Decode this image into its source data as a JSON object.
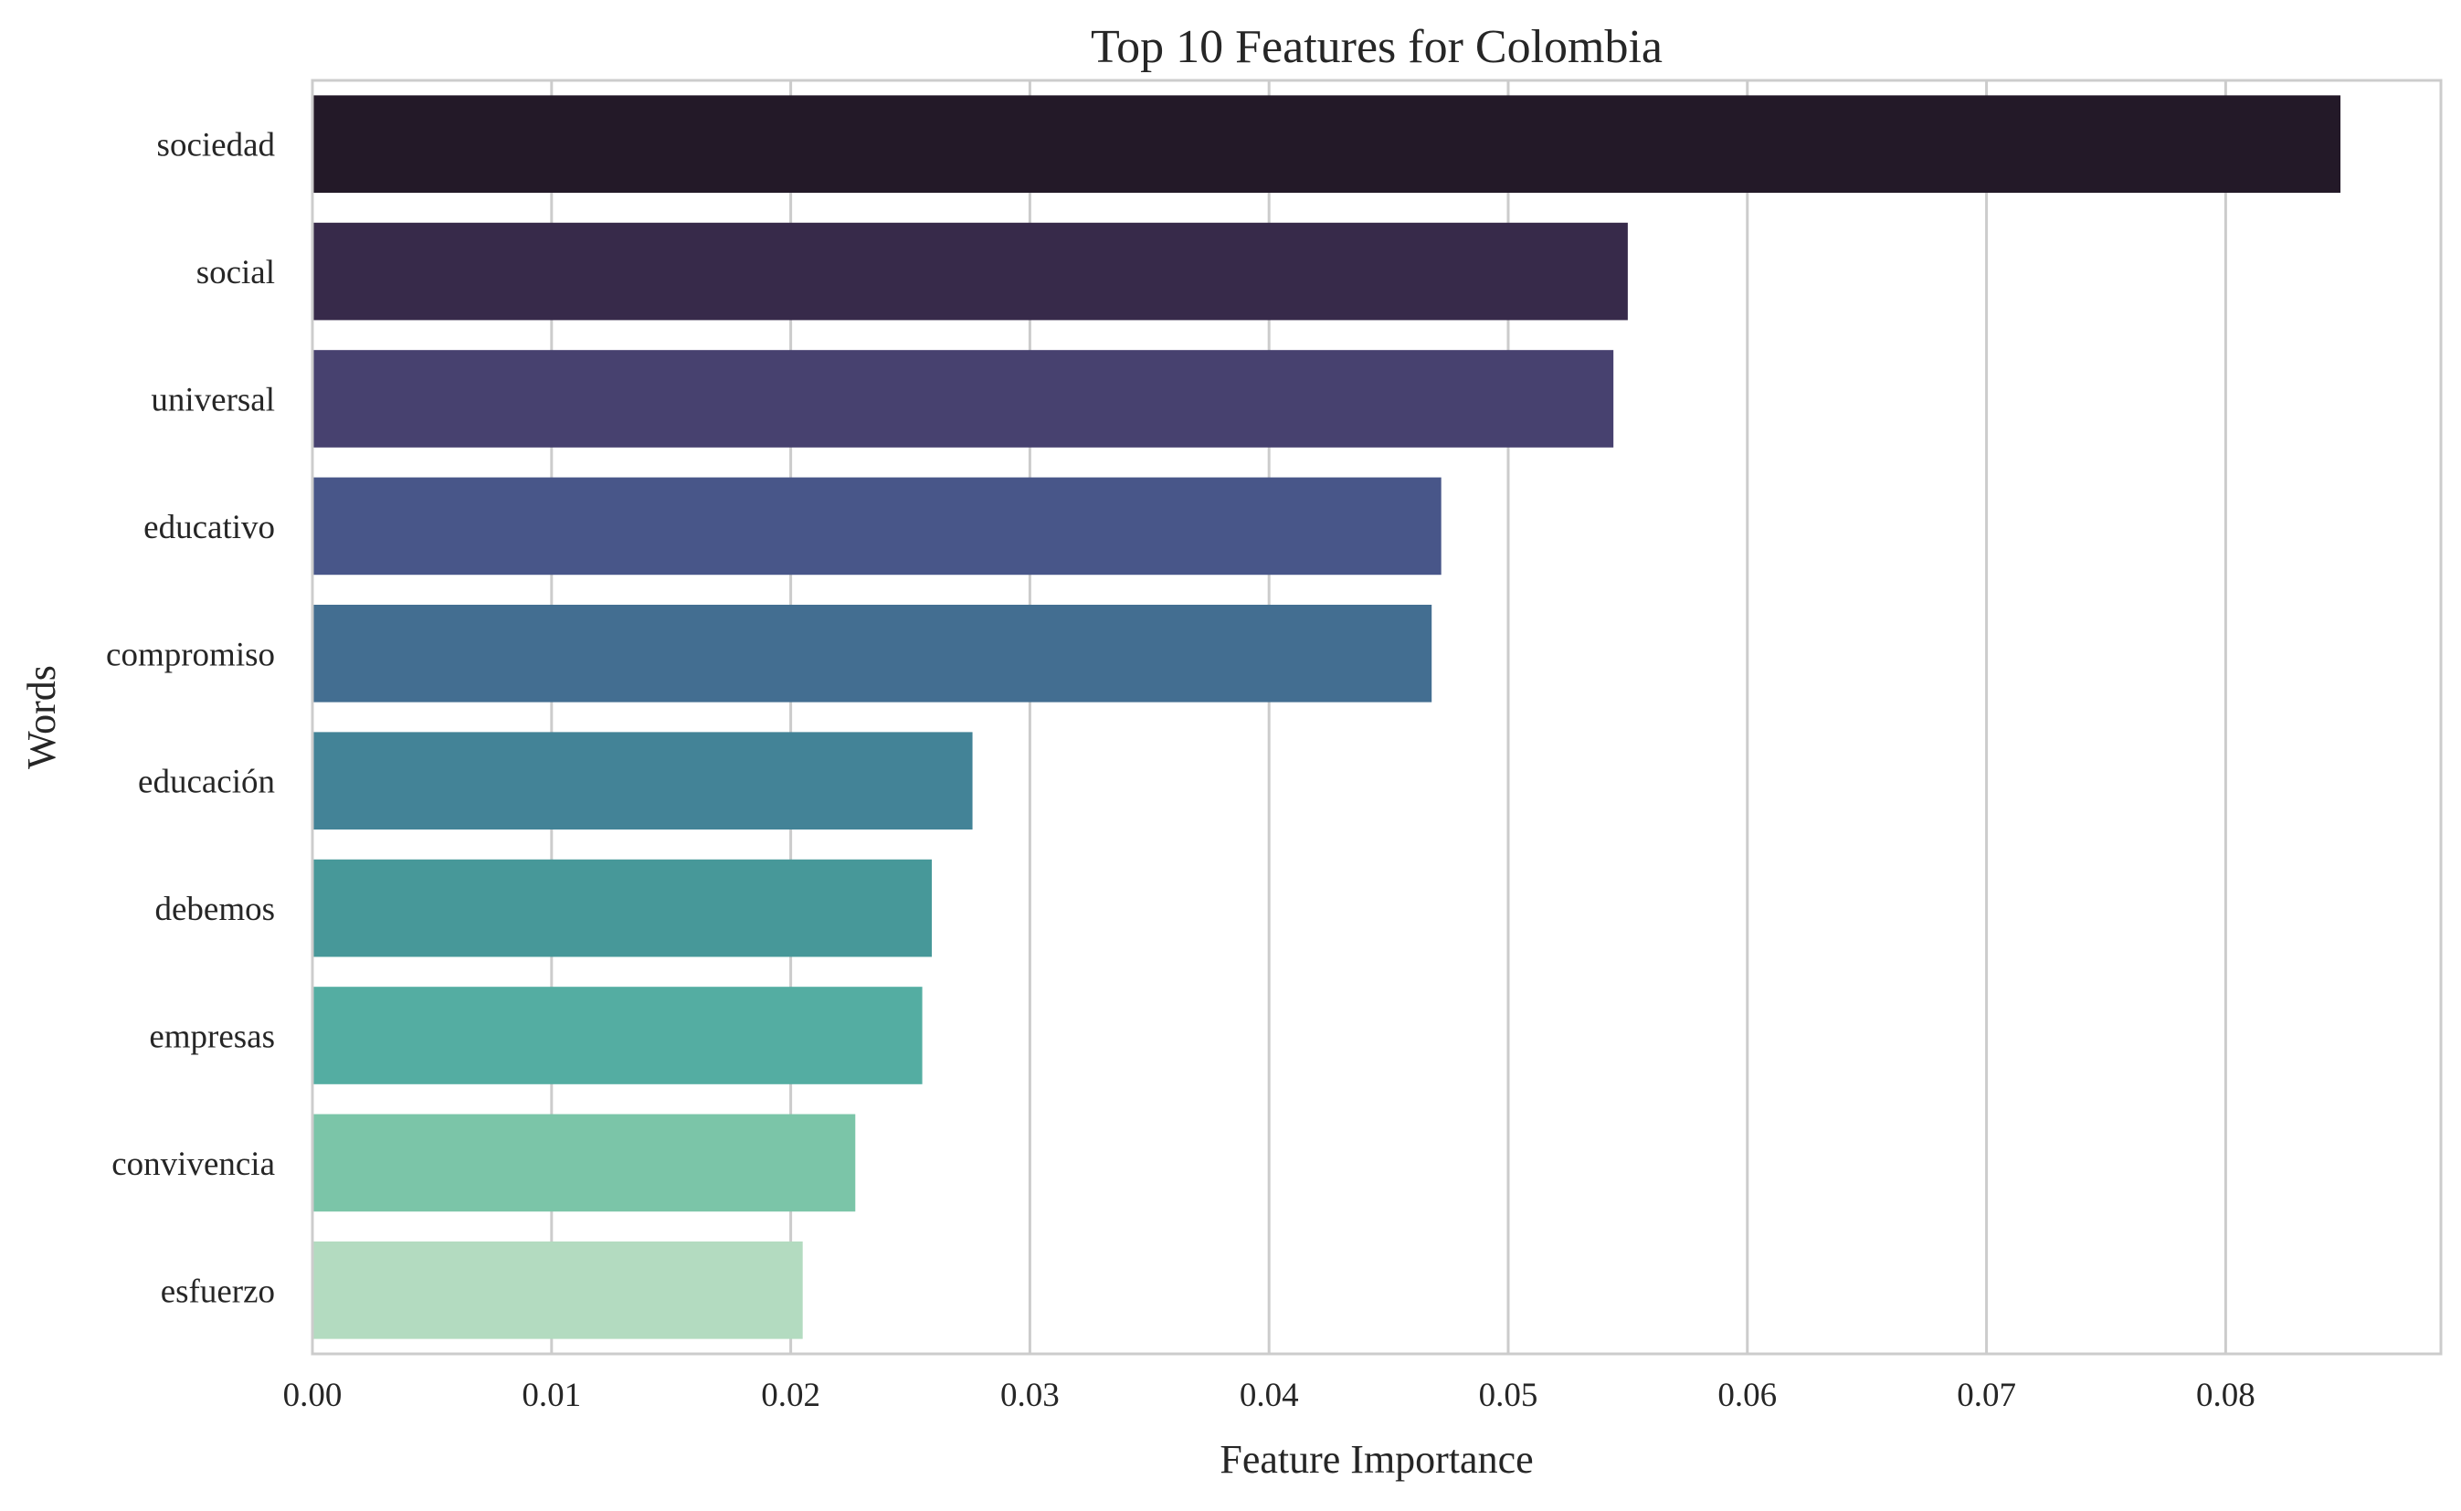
{
  "chart_data": {
    "type": "bar",
    "orientation": "horizontal",
    "title": "Top 10 Features for Colombia",
    "xlabel": "Feature Importance",
    "ylabel": "Words",
    "categories": [
      "sociedad",
      "social",
      "universal",
      "educativo",
      "compromiso",
      "educación",
      "debemos",
      "empresas",
      "convivencia",
      "esfuerzo"
    ],
    "values": [
      0.0848,
      0.055,
      0.0544,
      0.0472,
      0.0468,
      0.0276,
      0.0259,
      0.0255,
      0.0227,
      0.0205
    ],
    "colors": [
      "#231928",
      "#372a4a",
      "#47416f",
      "#485689",
      "#436e91",
      "#438397",
      "#479899",
      "#54ada2",
      "#7bc5a8",
      "#b3dbc0"
    ],
    "xlim": [
      0.0,
      0.089
    ],
    "xticks": [
      "0.00",
      "0.01",
      "0.02",
      "0.03",
      "0.04",
      "0.05",
      "0.06",
      "0.07",
      "0.08"
    ],
    "grid": "vertical",
    "legend": "none"
  }
}
